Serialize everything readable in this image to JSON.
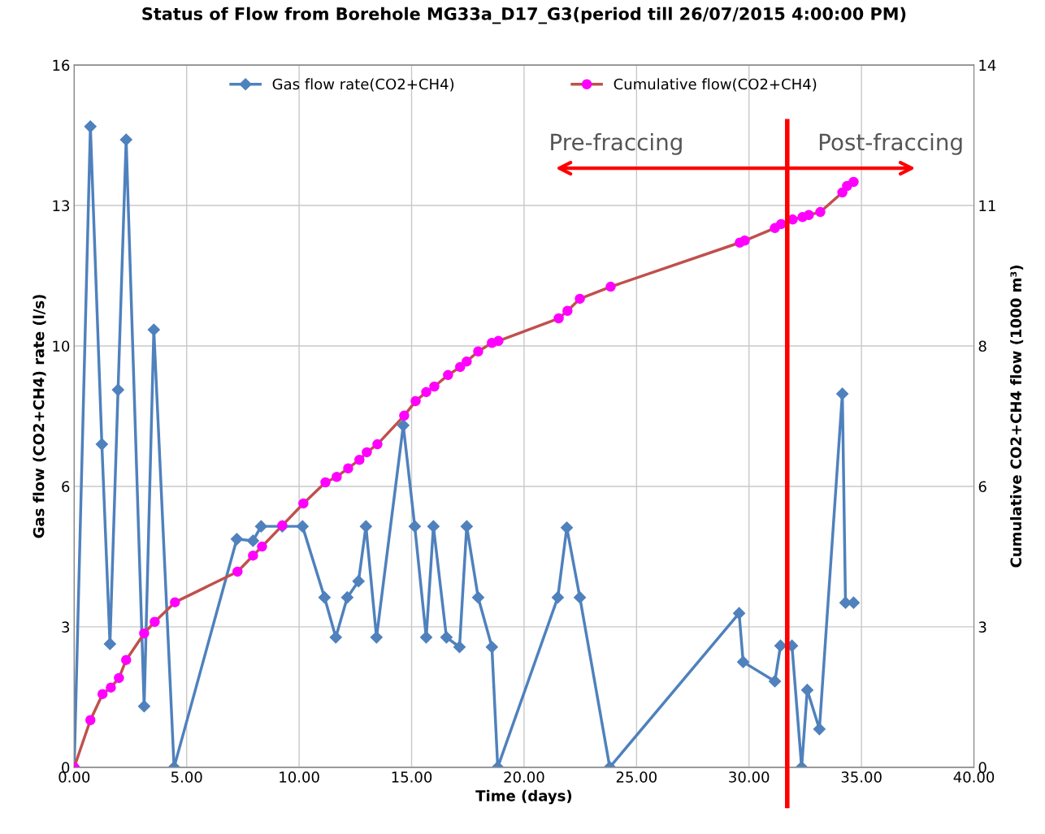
{
  "chart_data": {
    "type": "line",
    "title": "Status of Flow from Borehole MG33a_D17_G3(period till 26/07/2015 4:00:00 PM)",
    "xlabel": "Time (days)",
    "ylabel": "Gas flow (CO2+CH4) rate (l/s)",
    "y2label": "Cumulative CO2+CH4 flow (1000 m³)",
    "series": [
      {
        "name": "Gas flow rate(CO2+CH4)",
        "color": "#4f81bd",
        "marker": "diamond",
        "x": [
          0,
          0.72,
          1.23,
          1.59,
          1.95,
          2.31,
          3.11,
          3.54,
          4.44,
          7.23,
          7.95,
          8.31,
          9.25,
          10.15,
          11.13,
          11.63,
          12.14,
          12.64,
          12.97,
          13.44,
          14.63,
          15.14,
          15.65,
          15.97,
          16.55,
          17.13,
          17.45,
          17.96,
          18.57,
          18.83,
          21.5,
          21.9,
          22.48,
          23.81,
          29.56,
          29.74,
          31.15,
          31.4,
          31.91,
          32.34,
          32.59,
          33.13,
          34.15,
          34.29,
          34.65
        ],
        "values": [
          0,
          14.6,
          7.36,
          2.81,
          8.6,
          14.3,
          1.39,
          9.97,
          0,
          5.2,
          5.16,
          5.49,
          5.49,
          5.49,
          3.87,
          2.96,
          3.87,
          4.24,
          5.49,
          2.96,
          7.79,
          5.49,
          2.96,
          5.49,
          2.96,
          2.74,
          5.49,
          3.87,
          2.74,
          0,
          3.87,
          5.46,
          3.87,
          0,
          3.51,
          2.4,
          1.96,
          2.77,
          2.77,
          0,
          1.76,
          0.87,
          8.51,
          3.75,
          3.75
        ]
      },
      {
        "name": "Cumulative flow(CO2+CH4)",
        "color": "#c0504d",
        "marker": "circle",
        "colors": [
          "#ff00ff",
          "#ff00ff",
          "#ff00ff",
          "#ff00ff",
          "#ff00ff",
          "#ff00ff",
          "#ff00ff",
          "#ff00ff",
          "#ff00ff",
          "#ff00ff",
          "#ff00ff",
          "#ff00ff",
          "#ff00ff",
          "#ff00ff",
          "#ff00ff",
          "#ff00ff",
          "#ff00ff",
          "#ff00ff",
          "#ff00ff",
          "#ff00ff",
          "#ff00ff",
          "#ff00ff",
          "#ff00ff",
          "#ff00ff",
          "#ff00ff",
          "#ff00ff",
          "#ff00ff",
          "#ff00ff",
          "#ff00ff",
          "#ff00ff",
          "#ff00ff",
          "#ff00ff",
          "#ff00ff",
          "#ff00ff",
          "#ff00ff",
          "#ff00ff",
          "#ff00ff",
          "#ff00ff",
          "#ff00ff",
          "#ff00ff",
          "#ff00ff",
          "#ff00ff",
          "#ff00ff",
          "#ff00ff",
          "#ff00ff"
        ],
        "axis": "y2",
        "x": [
          0,
          0.72,
          1.26,
          1.63,
          1.99,
          2.31,
          3.11,
          3.58,
          4.48,
          7.26,
          7.95,
          8.35,
          9.25,
          10.19,
          11.17,
          11.67,
          12.18,
          12.68,
          13.01,
          13.48,
          14.67,
          15.18,
          15.65,
          16.01,
          16.62,
          17.16,
          17.45,
          17.96,
          18.57,
          18.86,
          21.54,
          21.93,
          22.48,
          23.85,
          29.59,
          29.81,
          31.15,
          31.43,
          31.94,
          32.38,
          32.66,
          33.17,
          34.15,
          34.36,
          34.65
        ],
        "values": [
          0,
          0.94,
          1.46,
          1.59,
          1.78,
          2.14,
          2.67,
          2.9,
          3.29,
          3.9,
          4.22,
          4.4,
          4.82,
          5.26,
          5.68,
          5.79,
          5.96,
          6.13,
          6.28,
          6.44,
          7.01,
          7.3,
          7.48,
          7.59,
          7.82,
          7.98,
          8.09,
          8.29,
          8.46,
          8.5,
          8.95,
          9.1,
          9.34,
          9.58,
          10.46,
          10.5,
          10.75,
          10.83,
          10.92,
          10.97,
          11.01,
          11.07,
          11.46,
          11.59,
          11.67
        ]
      }
    ],
    "xlim": [
      0,
      40
    ],
    "xticks": [
      {
        "value": 0,
        "label": "0.00"
      },
      {
        "value": 5,
        "label": "5.00"
      },
      {
        "value": 10,
        "label": "10.00"
      },
      {
        "value": 15,
        "label": "15.00"
      },
      {
        "value": 20,
        "label": "20.00"
      },
      {
        "value": 25,
        "label": "25.00"
      },
      {
        "value": 30,
        "label": "30.00"
      },
      {
        "value": 35,
        "label": "35.00"
      },
      {
        "value": 40,
        "label": "40.00"
      }
    ],
    "ylim": [
      0,
      16
    ],
    "yticks": [
      0,
      {
        "value": 3.2,
        "label": "3"
      },
      {
        "value": 6.4,
        "label": "6"
      },
      {
        "value": 9.6,
        "label": "10"
      },
      {
        "value": 12.8,
        "label": "13"
      },
      16
    ],
    "y2lim": [
      0,
      14
    ],
    "y2ticks": [
      0,
      {
        "value": 2.8,
        "label": "3"
      },
      {
        "value": 5.6,
        "label": "6"
      },
      {
        "value": 8.4,
        "label": "8"
      },
      {
        "value": 11.2,
        "label": "11"
      },
      14
    ],
    "ref_lines": [
      {
        "axis": "x",
        "value": 31.7,
        "color": "#ff0000"
      }
    ],
    "annotations": [
      "Pre-fraccing",
      "Post-fraccing"
    ],
    "grid": true,
    "legend": "top",
    "line_style": "solid"
  }
}
